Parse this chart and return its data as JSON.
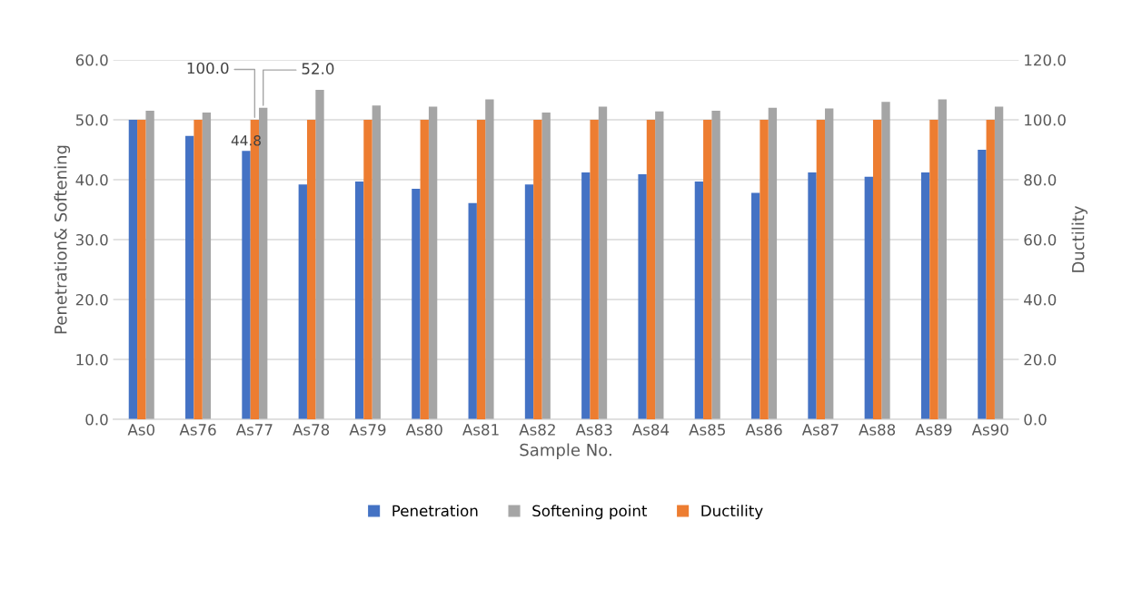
{
  "chart_data": {
    "type": "bar",
    "xlabel": "Sample No.",
    "ylabel": "Penetration& Softening",
    "y2label": "Ductility",
    "categories": [
      "As0",
      "As76",
      "As77",
      "As78",
      "As79",
      "As80",
      "As81",
      "As82",
      "As83",
      "As84",
      "As85",
      "As86",
      "As87",
      "As88",
      "As89",
      "As90"
    ],
    "series": [
      {
        "name": "Penetration",
        "color": "#4472c4",
        "values": [
          50.0,
          47.3,
          44.8,
          39.2,
          39.7,
          38.5,
          36.1,
          39.2,
          41.2,
          40.9,
          39.7,
          37.8,
          41.2,
          40.5,
          41.2,
          45.0
        ],
        "value_labels": [
          null,
          null,
          "44.8",
          null,
          null,
          null,
          null,
          null,
          null,
          null,
          null,
          null,
          null,
          null,
          null,
          null
        ]
      },
      {
        "name": "Softening point",
        "color": "#a5a5a5",
        "values": [
          51.5,
          51.2,
          52.0,
          55.0,
          52.4,
          52.2,
          53.4,
          51.2,
          52.2,
          51.4,
          51.5,
          52.0,
          51.9,
          53.0,
          53.4,
          52.2
        ],
        "value_labels": [
          null,
          null,
          "52.0",
          null,
          null,
          null,
          null,
          null,
          null,
          null,
          null,
          null,
          null,
          null,
          null,
          null
        ]
      },
      {
        "name": "Ductility",
        "color": "#ed7d31",
        "axis": "y2",
        "values": [
          100.0,
          100.0,
          100.0,
          100.0,
          100.0,
          100.0,
          100.0,
          100.0,
          100.0,
          100.0,
          100.0,
          100.0,
          100.0,
          100.0,
          100.0,
          100.0
        ],
        "value_labels": [
          null,
          null,
          "100.0",
          null,
          null,
          null,
          null,
          null,
          null,
          null,
          null,
          null,
          null,
          null,
          null,
          null
        ]
      }
    ],
    "ylim": [
      0,
      60
    ],
    "yticks": [
      {
        "value": 0,
        "label": "0.0"
      },
      {
        "value": 10,
        "label": "10.0"
      },
      {
        "value": 20,
        "label": "20.0"
      },
      {
        "value": 30,
        "label": "30.0"
      },
      {
        "value": 40,
        "label": "40.0"
      },
      {
        "value": 50,
        "label": "50.0"
      },
      {
        "value": 60,
        "label": "60.0"
      }
    ],
    "y2lim": [
      0,
      120
    ],
    "y2ticks": [
      {
        "value": 0,
        "label": "0.0"
      },
      {
        "value": 20,
        "label": "20.0"
      },
      {
        "value": 40,
        "label": "40.0"
      },
      {
        "value": 60,
        "label": "60.0"
      },
      {
        "value": 80,
        "label": "80.0"
      },
      {
        "value": 100,
        "label": "100.0"
      },
      {
        "value": 120,
        "label": "120.0"
      }
    ],
    "grid": "y",
    "legend": "bottom"
  }
}
